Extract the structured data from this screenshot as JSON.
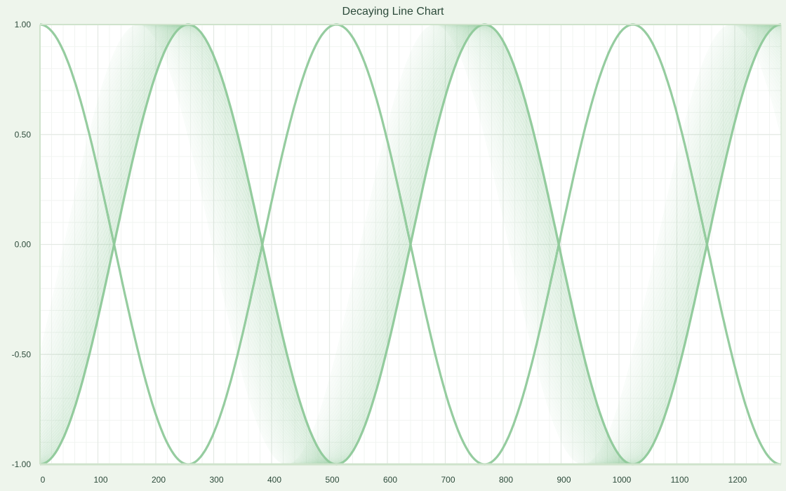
{
  "chart_data": {
    "type": "line",
    "title": "Decaying Line Chart",
    "xlabel": "",
    "ylabel": "",
    "xlim": [
      0,
      1280
    ],
    "ylim": [
      -1,
      1
    ],
    "x_ticks": [
      0,
      100,
      200,
      300,
      400,
      500,
      600,
      700,
      800,
      900,
      1000,
      1100,
      1200
    ],
    "x_tick_labels": [
      "0",
      "100",
      "200",
      "300",
      "400",
      "500",
      "600",
      "700",
      "800",
      "900",
      "1000",
      "1100",
      "1200"
    ],
    "y_ticks": [
      1,
      0.5,
      0,
      -0.5,
      -1
    ],
    "y_tick_labels": [
      "1.00",
      "0.50",
      "0.00",
      "-0.50",
      "-1.00"
    ],
    "grid": true,
    "legend": "none",
    "series": [
      {
        "function": "cos",
        "period": 512,
        "phase": 0,
        "amplitude": 1,
        "x": [
          0,
          32,
          64,
          96,
          128,
          160,
          192,
          224,
          256,
          288,
          320,
          352,
          384,
          416,
          448,
          480,
          512,
          544,
          576,
          608,
          640,
          672,
          704,
          736,
          768,
          800,
          832,
          864,
          896,
          928,
          960,
          992,
          1024,
          1056,
          1088,
          1120,
          1152,
          1184,
          1216,
          1248,
          1280
        ],
        "values": [
          1.0,
          0.92,
          0.71,
          0.38,
          0.0,
          -0.38,
          -0.71,
          -0.92,
          -1.0,
          -0.92,
          -0.71,
          -0.38,
          0.0,
          0.38,
          0.71,
          0.92,
          1.0,
          0.92,
          0.71,
          0.38,
          0.0,
          -0.38,
          -0.71,
          -0.92,
          -1.0,
          -0.92,
          -0.71,
          -0.38,
          0.0,
          0.38,
          0.71,
          0.92,
          1.0,
          0.92,
          0.71,
          0.38,
          0.0,
          -0.38,
          -0.71,
          -0.92,
          -1.0
        ]
      },
      {
        "function": "sin",
        "period": 512,
        "phase_start": -128,
        "phase_drift_per_trace": 2.2,
        "trace_count": 40,
        "amplitude": 1,
        "x": [
          0,
          32,
          64,
          96,
          128,
          160,
          192,
          224,
          256,
          288,
          320,
          352,
          384,
          416,
          448,
          480,
          512,
          544,
          576,
          608,
          640,
          672,
          704,
          736,
          768,
          800,
          832,
          864,
          896,
          928,
          960,
          992,
          1024,
          1056,
          1088,
          1120,
          1152,
          1184,
          1216,
          1248,
          1280
        ],
        "values": [
          -1.0,
          -0.92,
          -0.71,
          -0.38,
          0.0,
          0.38,
          0.71,
          0.92,
          1.0,
          0.92,
          0.71,
          0.38,
          0.0,
          -0.38,
          -0.71,
          -0.92,
          -1.0,
          -0.92,
          -0.71,
          -0.38,
          0.0,
          0.38,
          0.71,
          0.92,
          1.0,
          0.92,
          0.71,
          0.38,
          0.0,
          -0.38,
          -0.71,
          -0.92,
          -1.0,
          -0.92,
          -0.71,
          -0.38,
          0.0,
          0.38,
          0.71,
          0.92,
          1.0
        ]
      }
    ],
    "colors": {
      "line": "#8fc99a",
      "plot_bg": "#ffffff",
      "page_bg": "#eef5ec",
      "grid_major": "#e4e9e4",
      "grid_minor": "#f1f4f1",
      "axis": "#cfe3cc",
      "text": "#2c4a3a"
    }
  }
}
